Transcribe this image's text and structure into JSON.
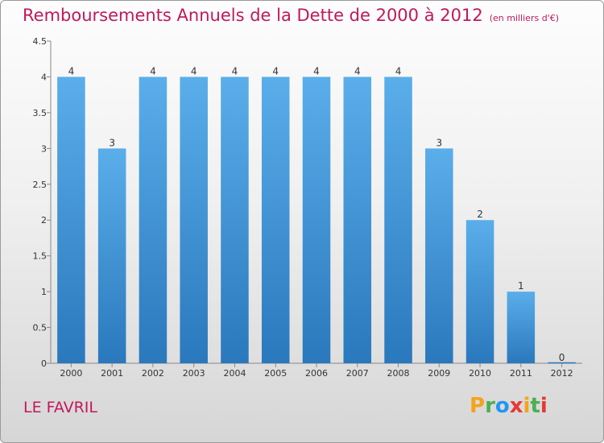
{
  "chart_data": {
    "type": "bar",
    "title": "Remboursements Annuels de la Dette de 2000 à 2012",
    "subtitle": "(en milliers d'€)",
    "xlabel": "",
    "ylabel": "",
    "categories": [
      "2000",
      "2001",
      "2002",
      "2003",
      "2004",
      "2005",
      "2006",
      "2007",
      "2008",
      "2009",
      "2010",
      "2011",
      "2012"
    ],
    "values": [
      4,
      3,
      4,
      4,
      4,
      4,
      4,
      4,
      4,
      3,
      2,
      1,
      0
    ],
    "ylim": [
      0,
      4.5
    ],
    "yticks": [
      "0",
      "0.5",
      "1",
      "1.5",
      "2",
      "2.5",
      "3",
      "3.5",
      "4",
      "4.5"
    ],
    "grid": false,
    "bar_color": "#4a9fe0",
    "bar_color_dark": "#2a7bc1"
  },
  "footer": {
    "commune": "LE FAVRIL",
    "logo": {
      "letters": [
        "P",
        "r",
        "o",
        "x",
        "i",
        "t",
        "i"
      ],
      "colors": [
        "#f5a31a",
        "#4caf50",
        "#2196f3",
        "#e53935",
        "#f5a31a",
        "#4caf50",
        "#e53935"
      ]
    }
  }
}
